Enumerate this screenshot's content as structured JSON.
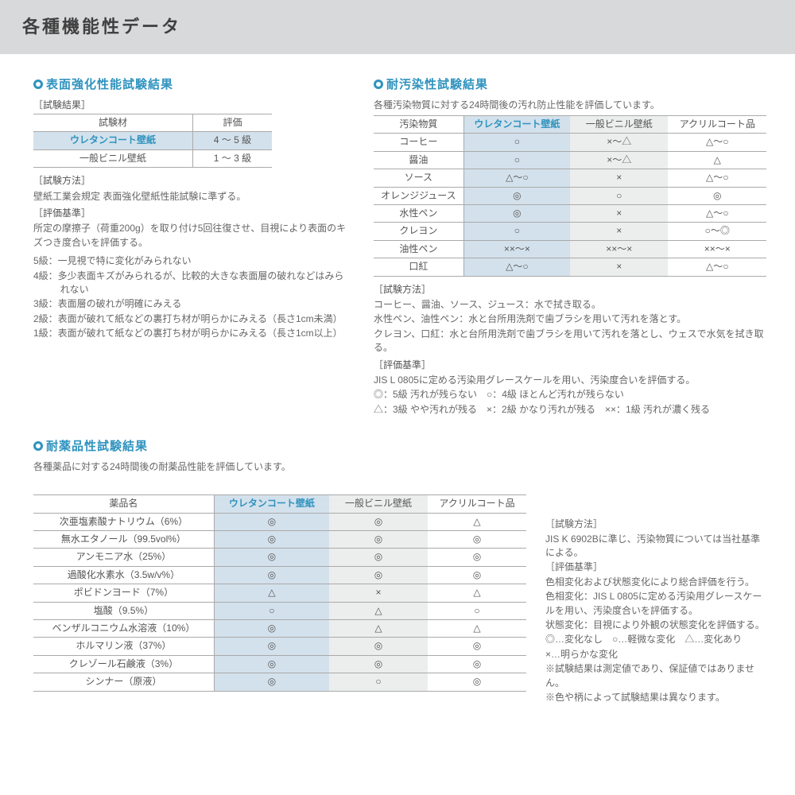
{
  "pageTitle": "各種機能性データ",
  "colors": {
    "accent": "#2f93bf",
    "hlBlue": "#d3e1ec",
    "hlGray": "#eceded",
    "border": "#aaa"
  },
  "sec1": {
    "title": "表面強化性能試験結果",
    "resultLabel": "［試験結果］",
    "headers": [
      "試験材",
      "評価"
    ],
    "rows": [
      {
        "name": "ウレタンコート壁紙",
        "val": "4 ～ 5 級",
        "hl": true
      },
      {
        "name": "一般ビニル壁紙",
        "val": "1 ～ 3 級",
        "hl": false
      }
    ],
    "methodLabel": "［試験方法］",
    "methodText": "壁紙工業会規定 表面強化壁紙性能試験に準ずる。",
    "critLabel": "［評価基準］",
    "critText": "所定の摩擦子（荷重200g）を取り付け5回往復させ、目視により表面のキズつき度合いを評価する。",
    "grades": [
      "5級：一見視で特に変化がみられない",
      "4級：多少表面キズがみられるが、比較的大きな表面層の破れなどはみられない",
      "3級：表面層の破れが明確にみえる",
      "2級：表面が破れて紙などの裏打ち材が明らかにみえる（長さ1cm未満）",
      "1級：表面が破れて紙などの裏打ち材が明らかにみえる（長さ1cm以上）"
    ]
  },
  "sec2": {
    "title": "耐汚染性試験結果",
    "intro": "各種汚染物質に対する24時間後の汚れ防止性能を評価しています。",
    "headers": [
      "汚染物質",
      "ウレタンコート壁紙",
      "一般ビニル壁紙",
      "アクリルコート品"
    ],
    "rows": [
      [
        "コーヒー",
        "○",
        "×～△",
        "△～○"
      ],
      [
        "醤油",
        "○",
        "×～△",
        "△"
      ],
      [
        "ソース",
        "△～○",
        "×",
        "△～○"
      ],
      [
        "オレンジジュース",
        "◎",
        "○",
        "◎"
      ],
      [
        "水性ペン",
        "◎",
        "×",
        "△～○"
      ],
      [
        "クレヨン",
        "○",
        "×",
        "○～◎"
      ],
      [
        "油性ペン",
        "××～×",
        "××～×",
        "××～×"
      ],
      [
        "口紅",
        "△～○",
        "×",
        "△～○"
      ]
    ],
    "methodLabel": "［試験方法］",
    "methodLines": [
      "コーヒー、醤油、ソース、ジュース：水で拭き取る。",
      "水性ペン、油性ペン：水と台所用洗剤で歯ブラシを用いて汚れを落とす。",
      "クレヨン、口紅：水と台所用洗剤で歯ブラシを用いて汚れを落とし、ウェスで水気を拭き取る。"
    ],
    "critLabel": "［評価基準］",
    "critLines": [
      "JIS L 0805に定める汚染用グレースケールを用い、汚染度合いを評価する。",
      "◎：5級 汚れが残らない　○：4級 ほとんど汚れが残らない",
      "△：3級 やや汚れが残る　×：2級 かなり汚れが残る　××：1級 汚れが濃く残る"
    ]
  },
  "sec3": {
    "title": "耐薬品性試験結果",
    "intro": "各種薬品に対する24時間後の耐薬品性能を評価しています。",
    "headers": [
      "薬品名",
      "ウレタンコート壁紙",
      "一般ビニル壁紙",
      "アクリルコート品"
    ],
    "rows": [
      [
        "次亜塩素酸ナトリウム（6%）",
        "◎",
        "◎",
        "△"
      ],
      [
        "無水エタノール（99.5vol%）",
        "◎",
        "◎",
        "◎"
      ],
      [
        "アンモニア水（25%）",
        "◎",
        "◎",
        "◎"
      ],
      [
        "過酸化水素水（3.5w/v%）",
        "◎",
        "◎",
        "◎"
      ],
      [
        "ポビドンヨード（7%）",
        "△",
        "×",
        "△"
      ],
      [
        "塩酸（9.5%）",
        "○",
        "△",
        "○"
      ],
      [
        "ベンザルコニウム水溶液（10%）",
        "◎",
        "△",
        "△"
      ],
      [
        "ホルマリン液（37%）",
        "◎",
        "◎",
        "◎"
      ],
      [
        "クレゾール石鹸液（3%）",
        "◎",
        "◎",
        "◎"
      ],
      [
        "シンナー（原液）",
        "◎",
        "○",
        "◎"
      ]
    ],
    "methodLabel": "［試験方法］",
    "methodText": "JIS K 6902Bに準じ、汚染物質については当社基準による。",
    "critLabel": "［評価基準］",
    "critLines": [
      "色相変化および状態変化により総合評価を行う。",
      "色相変化：JIS L 0805に定める汚染用グレースケールを用い、汚染度合いを評価する。",
      "状態変化：目視により外観の状態変化を評価する。",
      "◎…変化なし　○…軽微な変化　△…変化あり",
      "×…明らかな変化",
      "※試験結果は測定値であり、保証値ではありません。",
      "※色や柄によって試験結果は異なります。"
    ]
  }
}
